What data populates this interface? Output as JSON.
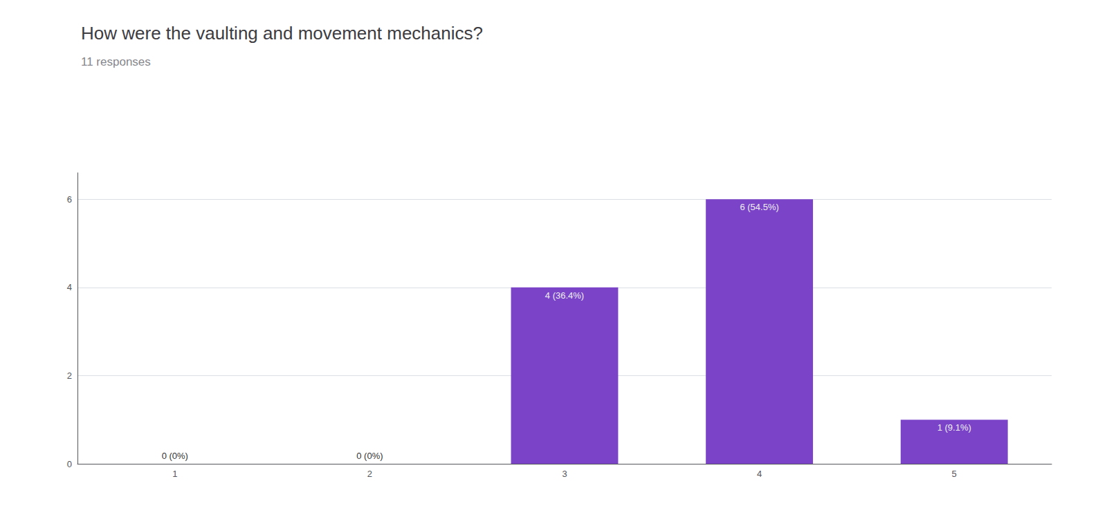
{
  "chart_data": {
    "type": "bar",
    "title": "How were the vaulting and movement mechanics?",
    "subtitle": "11 responses",
    "categories": [
      "1",
      "2",
      "3",
      "4",
      "5"
    ],
    "values": [
      0,
      0,
      4,
      6,
      1
    ],
    "value_labels": [
      "0 (0%)",
      "0 (0%)",
      "4 (36.4%)",
      "6 (54.5%)",
      "1 (9.1%)"
    ],
    "data_labels": true,
    "color": "#7B44C8",
    "ylim": [
      0,
      6.6
    ],
    "yticks": [
      0,
      2,
      4,
      6
    ],
    "grid": true
  }
}
